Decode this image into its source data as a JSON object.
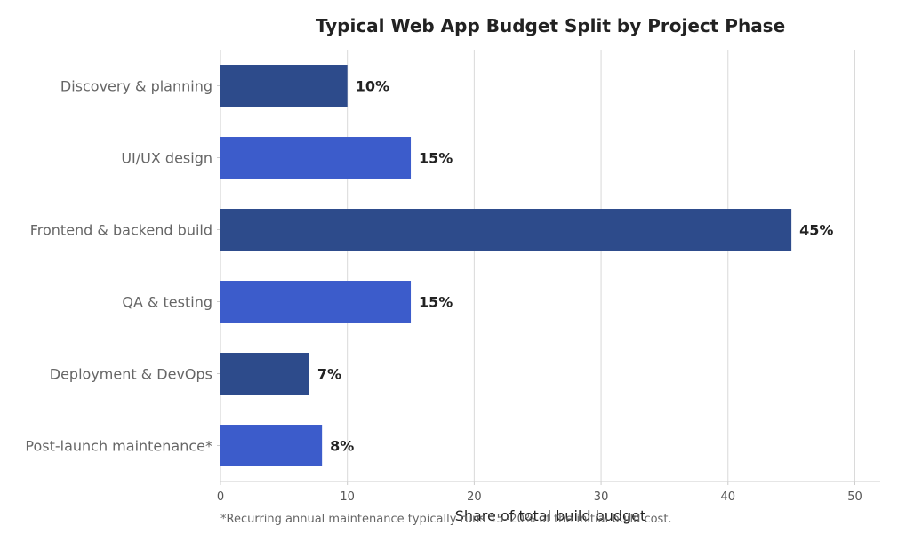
{
  "chart_data": {
    "type": "bar",
    "orientation": "horizontal",
    "title": "Typical Web App Budget Split by Project Phase",
    "xlabel": "Share of total build budget",
    "ylabel": "",
    "xlim": [
      0,
      52
    ],
    "x_ticks": [
      "0",
      "10",
      "20",
      "30",
      "40",
      "50"
    ],
    "categories": [
      "Discovery & planning",
      "UI/UX design",
      "Frontend & backend build",
      "QA & testing",
      "Deployment & DevOps",
      "Post-launch maintenance*"
    ],
    "values": [
      10,
      15,
      45,
      15,
      7,
      8
    ],
    "value_labels": [
      "10%",
      "15%",
      "45%",
      "15%",
      "7%",
      "8%"
    ],
    "colors": [
      "#2d4b8b",
      "#3c5ccb",
      "#2d4b8b",
      "#3c5ccb",
      "#2d4b8b",
      "#3c5ccb"
    ],
    "grid": "vertical",
    "legend": "none",
    "footnote": "*Recurring annual maintenance typically runs 15–20% of the initial build cost."
  }
}
